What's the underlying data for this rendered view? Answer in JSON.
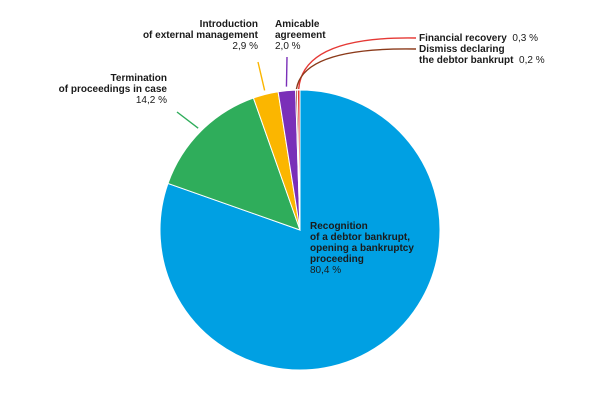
{
  "chart_data": {
    "type": "pie",
    "slices": [
      {
        "id": "recognition",
        "name_lines": [
          "Recognition",
          "of a debtor bankrupt,",
          "opening a bankruptcy",
          "proceeding"
        ],
        "label_text": "80,4 %",
        "value": 80.4,
        "color": "#00a0e3"
      },
      {
        "id": "termination",
        "name_lines": [
          "Termination",
          "of proceedings in case"
        ],
        "label_text": "14,2 %",
        "value": 14.2,
        "color": "#2fad5b"
      },
      {
        "id": "introduction",
        "name_lines": [
          "Introduction",
          "of external management"
        ],
        "label_text": "2,9 %",
        "value": 2.9,
        "color": "#fbb600"
      },
      {
        "id": "amicable",
        "name_lines": [
          "Amicable",
          "agreement"
        ],
        "label_text": "2,0 %",
        "value": 2.0,
        "color": "#7a2fb8"
      },
      {
        "id": "financial",
        "name_lines": [
          "Financial recovery"
        ],
        "label_text": "0,3 %",
        "value": 0.3,
        "color": "#e53935"
      },
      {
        "id": "dismiss",
        "name_lines": [
          "Dismiss declaring",
          "the debtor bankrupt"
        ],
        "label_text": "0,2 %",
        "value": 0.2,
        "color": "#8b3a1a"
      }
    ]
  }
}
